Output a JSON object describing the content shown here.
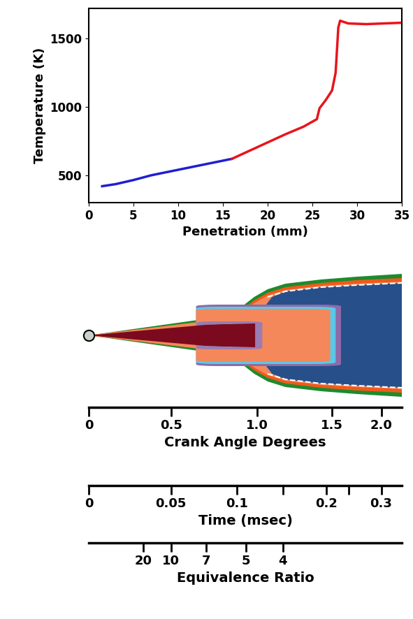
{
  "chart_data": {
    "type": "line",
    "xlabel": "Penetration (mm)",
    "ylabel": "Temperature (K)",
    "xlim": [
      0,
      35
    ],
    "xticks": [
      0,
      5,
      10,
      15,
      20,
      25,
      30,
      35
    ],
    "ylim": [
      300,
      1720
    ],
    "yticks": [
      500,
      1000,
      1500
    ],
    "series": [
      {
        "color": "#1f1fd0",
        "x": [
          1.5,
          3,
          5,
          7,
          10,
          13,
          16
        ],
        "values": [
          420,
          435,
          465,
          500,
          540,
          580,
          620
        ]
      },
      {
        "color": "#e8141b",
        "x": [
          16,
          18,
          20,
          22,
          24,
          25.5,
          25.8,
          26.5,
          27.2,
          27.6,
          27.9,
          28.1,
          29,
          31,
          33,
          35
        ],
        "values": [
          620,
          680,
          740,
          800,
          855,
          910,
          990,
          1050,
          1120,
          1250,
          1580,
          1630,
          1610,
          1605,
          1610,
          1615
        ]
      }
    ]
  },
  "diagram": {
    "scales": [
      {
        "label": "Crank Angle Degrees",
        "xlim": [
          0,
          35
        ],
        "ticks": [
          {
            "value": 0,
            "label": "0"
          },
          {
            "value": 9.2,
            "label": "0.5"
          },
          {
            "value": 18.8,
            "label": "1.0"
          },
          {
            "value": 27.2,
            "label": "1.5"
          },
          {
            "value": 32.7,
            "label": "2.0"
          }
        ],
        "minor_ticks": []
      },
      {
        "label": "Time (msec)",
        "xlim": [
          0,
          35
        ],
        "ticks": [
          {
            "value": 0,
            "label": "0"
          },
          {
            "value": 9.2,
            "label": "0.05"
          },
          {
            "value": 16.6,
            "label": "0.1"
          },
          {
            "value": 26.6,
            "label": "0.2"
          },
          {
            "value": 32.7,
            "label": "0.3"
          }
        ],
        "minor_ticks": [
          21.7,
          29.1
        ]
      },
      {
        "label": "Equivalence Ratio",
        "xlim": [
          0,
          35
        ],
        "ticks": [
          {
            "value": 6.1,
            "label": "20"
          },
          {
            "value": 9.2,
            "label": "10"
          },
          {
            "value": 13.1,
            "label": "7"
          },
          {
            "value": 17.6,
            "label": "5"
          },
          {
            "value": 21.7,
            "label": "4"
          }
        ],
        "minor_ticks": []
      }
    ]
  }
}
